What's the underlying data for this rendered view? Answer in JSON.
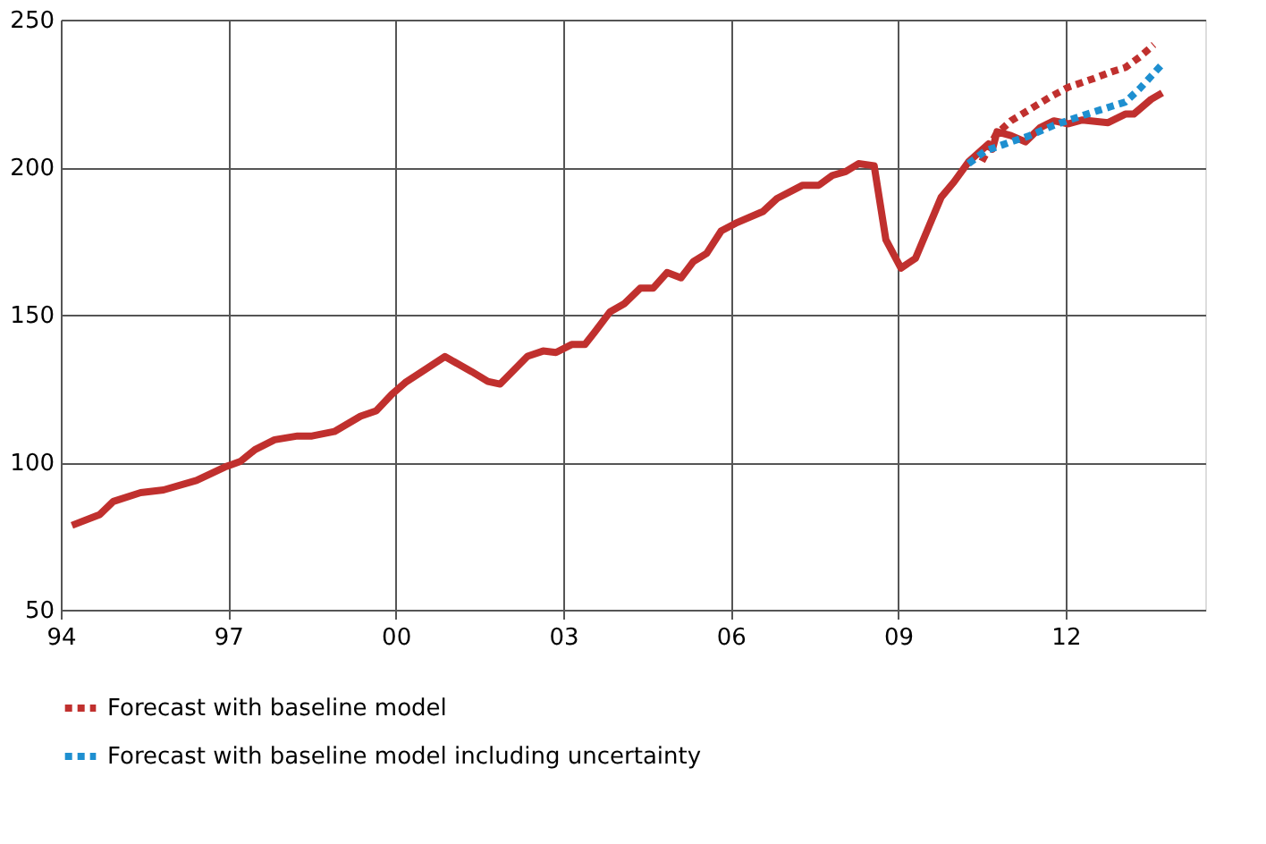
{
  "chart_data": {
    "type": "line",
    "xlim": [
      1994,
      2014.5
    ],
    "xticks": [
      {
        "value": 1994,
        "label": "94"
      },
      {
        "value": 1997,
        "label": "97"
      },
      {
        "value": 2000,
        "label": "00"
      },
      {
        "value": 2003,
        "label": "03"
      },
      {
        "value": 2006,
        "label": "06"
      },
      {
        "value": 2009,
        "label": "09"
      },
      {
        "value": 2012,
        "label": "12"
      }
    ],
    "ylim": [
      50,
      250
    ],
    "yticks": [
      50,
      100,
      150,
      200,
      250
    ],
    "grid": true,
    "legend": "bottom",
    "marker": "none",
    "series": [
      {
        "color": "#c0302e",
        "line_style": "solid",
        "x": [
          1994.2,
          1994.7,
          1994.94,
          1995.43,
          1995.84,
          1996.43,
          1996.94,
          1997.22,
          1997.48,
          1997.83,
          1998.24,
          1998.5,
          1998.9,
          1999.37,
          1999.65,
          1999.93,
          2000.17,
          2000.52,
          2000.88,
          2001.36,
          2001.65,
          2001.87,
          2002.36,
          2002.64,
          2002.87,
          2003.15,
          2003.39,
          2003.56,
          2003.84,
          2004.1,
          2004.38,
          2004.61,
          2004.86,
          2005.11,
          2005.33,
          2005.57,
          2005.83,
          2006.09,
          2006.58,
          2006.83,
          2007.29,
          2007.58,
          2007.82,
          2008.06,
          2008.29,
          2008.57,
          2008.78,
          2009.05,
          2009.31,
          2009.77,
          2010.0,
          2010.26,
          2010.48,
          2010.62,
          2010.69,
          2010.77,
          2011.02,
          2011.28,
          2011.54,
          2011.79,
          2012.05,
          2012.3,
          2012.76,
          2013.07,
          2013.22,
          2013.53,
          2013.73
        ],
        "values": [
          78.6,
          82.3,
          86.7,
          89.7,
          90.6,
          93.8,
          98.4,
          100.3,
          104.3,
          107.6,
          108.9,
          108.9,
          110.4,
          115.6,
          117.4,
          123,
          127,
          131.3,
          135.8,
          130.7,
          127.4,
          126.5,
          135.9,
          137.7,
          137.2,
          139.9,
          139.9,
          144,
          151,
          153.8,
          159,
          159,
          164.3,
          162.5,
          168,
          170.8,
          178.4,
          181,
          185,
          189.4,
          193.9,
          193.9,
          197.2,
          198.5,
          201.2,
          200.5,
          175.4,
          165.8,
          169.1,
          189.8,
          195,
          201.8,
          205.5,
          207.9,
          206.1,
          212,
          210.7,
          208.6,
          213.4,
          215.7,
          214.7,
          216,
          215.1,
          218,
          218,
          223,
          225.2
        ]
      },
      {
        "name": "Forecast with baseline model",
        "color": "#c0302e",
        "line_style": "dotted",
        "x": [
          2010.5,
          2010.75,
          2011.02,
          2011.74,
          2012.05,
          2012.51,
          2012.82,
          2013.07,
          2013.33,
          2013.58
        ],
        "values": [
          202,
          211,
          215.7,
          224,
          227.1,
          230.1,
          232.3,
          233.8,
          237.4,
          241.5
        ]
      },
      {
        "name": "Forecast with baseline model including uncertainty",
        "color": "#1e8fd0",
        "line_style": "dotted",
        "x": [
          2010.26,
          2010.56,
          2011.02,
          2011.33,
          2011.79,
          2012.3,
          2012.82,
          2013.07,
          2013.33,
          2013.53,
          2013.71
        ],
        "values": [
          201.2,
          205.5,
          208.6,
          210.5,
          214.2,
          217.5,
          220.6,
          222.1,
          226.7,
          230.8,
          234.5
        ]
      }
    ]
  }
}
